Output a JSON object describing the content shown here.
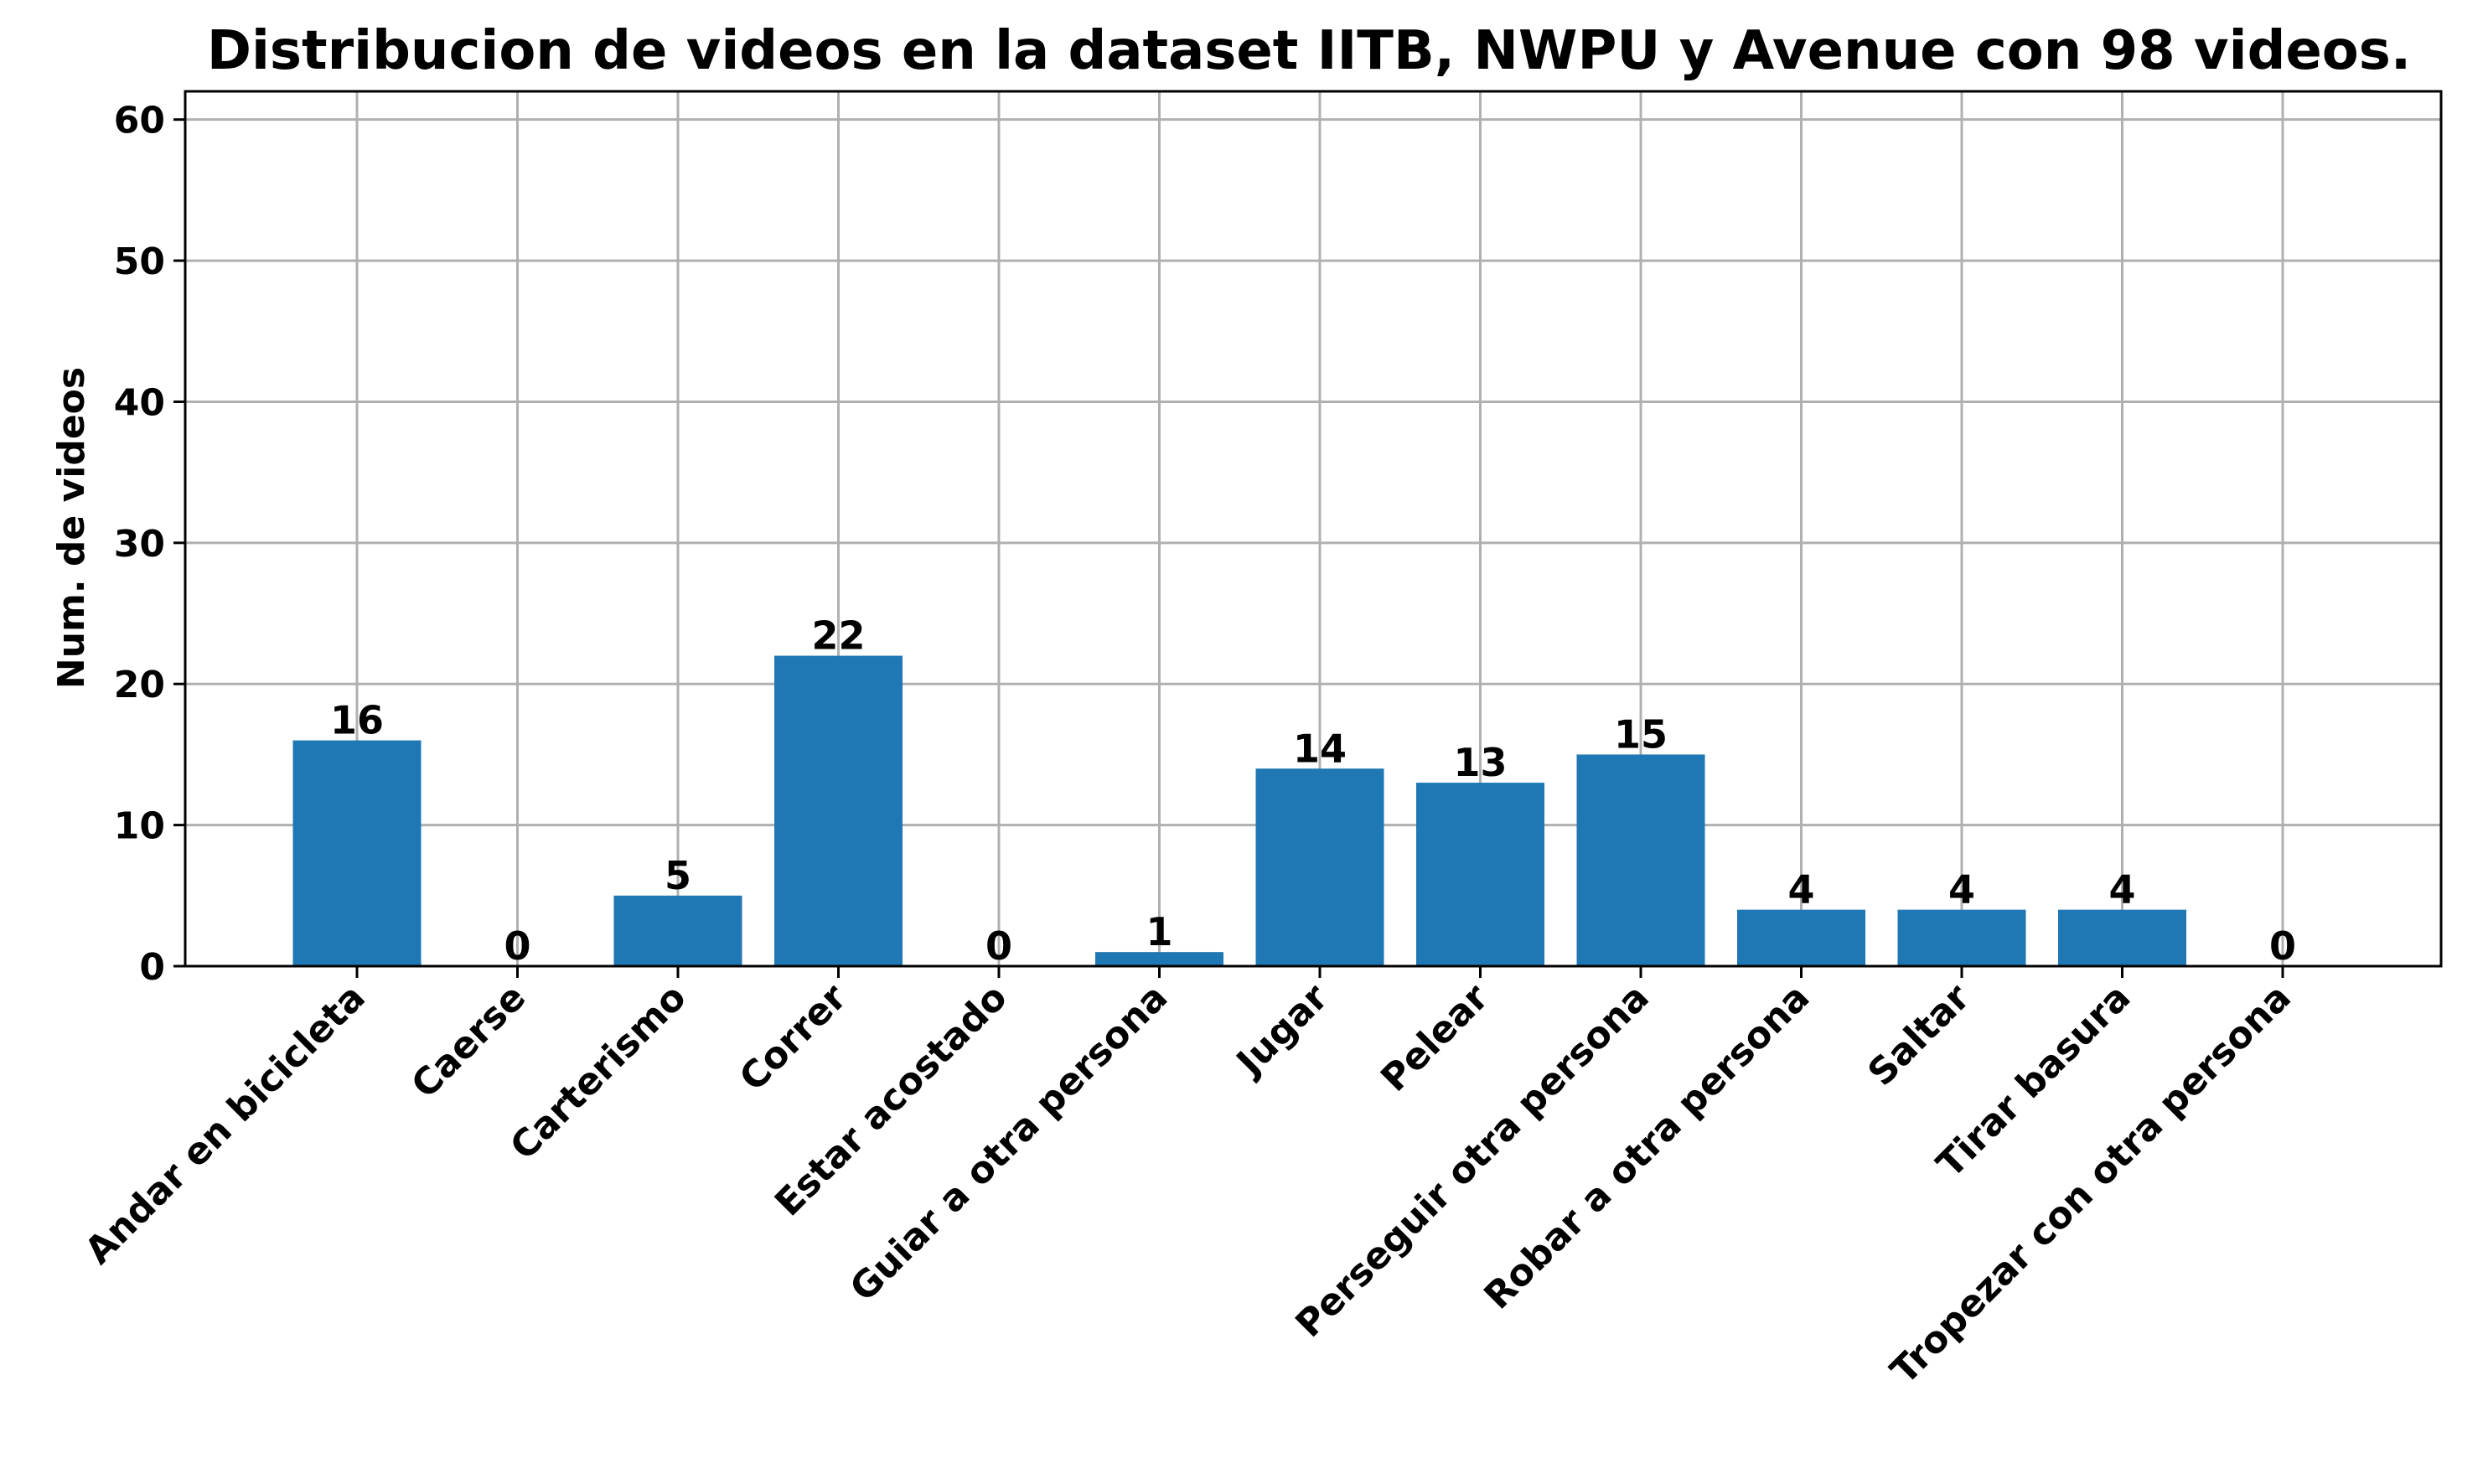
{
  "chart_data": {
    "type": "bar",
    "title": "Distribucion de videos en la dataset IITB, NWPU y Avenue con 98 videos.",
    "xlabel": "",
    "ylabel": "Num. de videos",
    "categories": [
      "Andar en bicicleta",
      "Caerse",
      "Carterismo",
      "Correr",
      "Estar acostado",
      "Guiar a otra persona",
      "Jugar",
      "Pelear",
      "Perseguir otra persona",
      "Robar a otra persona",
      "Saltar",
      "Tirar basura",
      "Tropezar con otra persona"
    ],
    "values": [
      16,
      0,
      5,
      22,
      0,
      1,
      14,
      13,
      15,
      4,
      4,
      4,
      0
    ],
    "ylim": [
      0,
      62
    ],
    "yticks": [
      0,
      10,
      20,
      30,
      40,
      50,
      60
    ],
    "grid": true,
    "bar_color": "#1f77b4",
    "data_labels": true
  }
}
